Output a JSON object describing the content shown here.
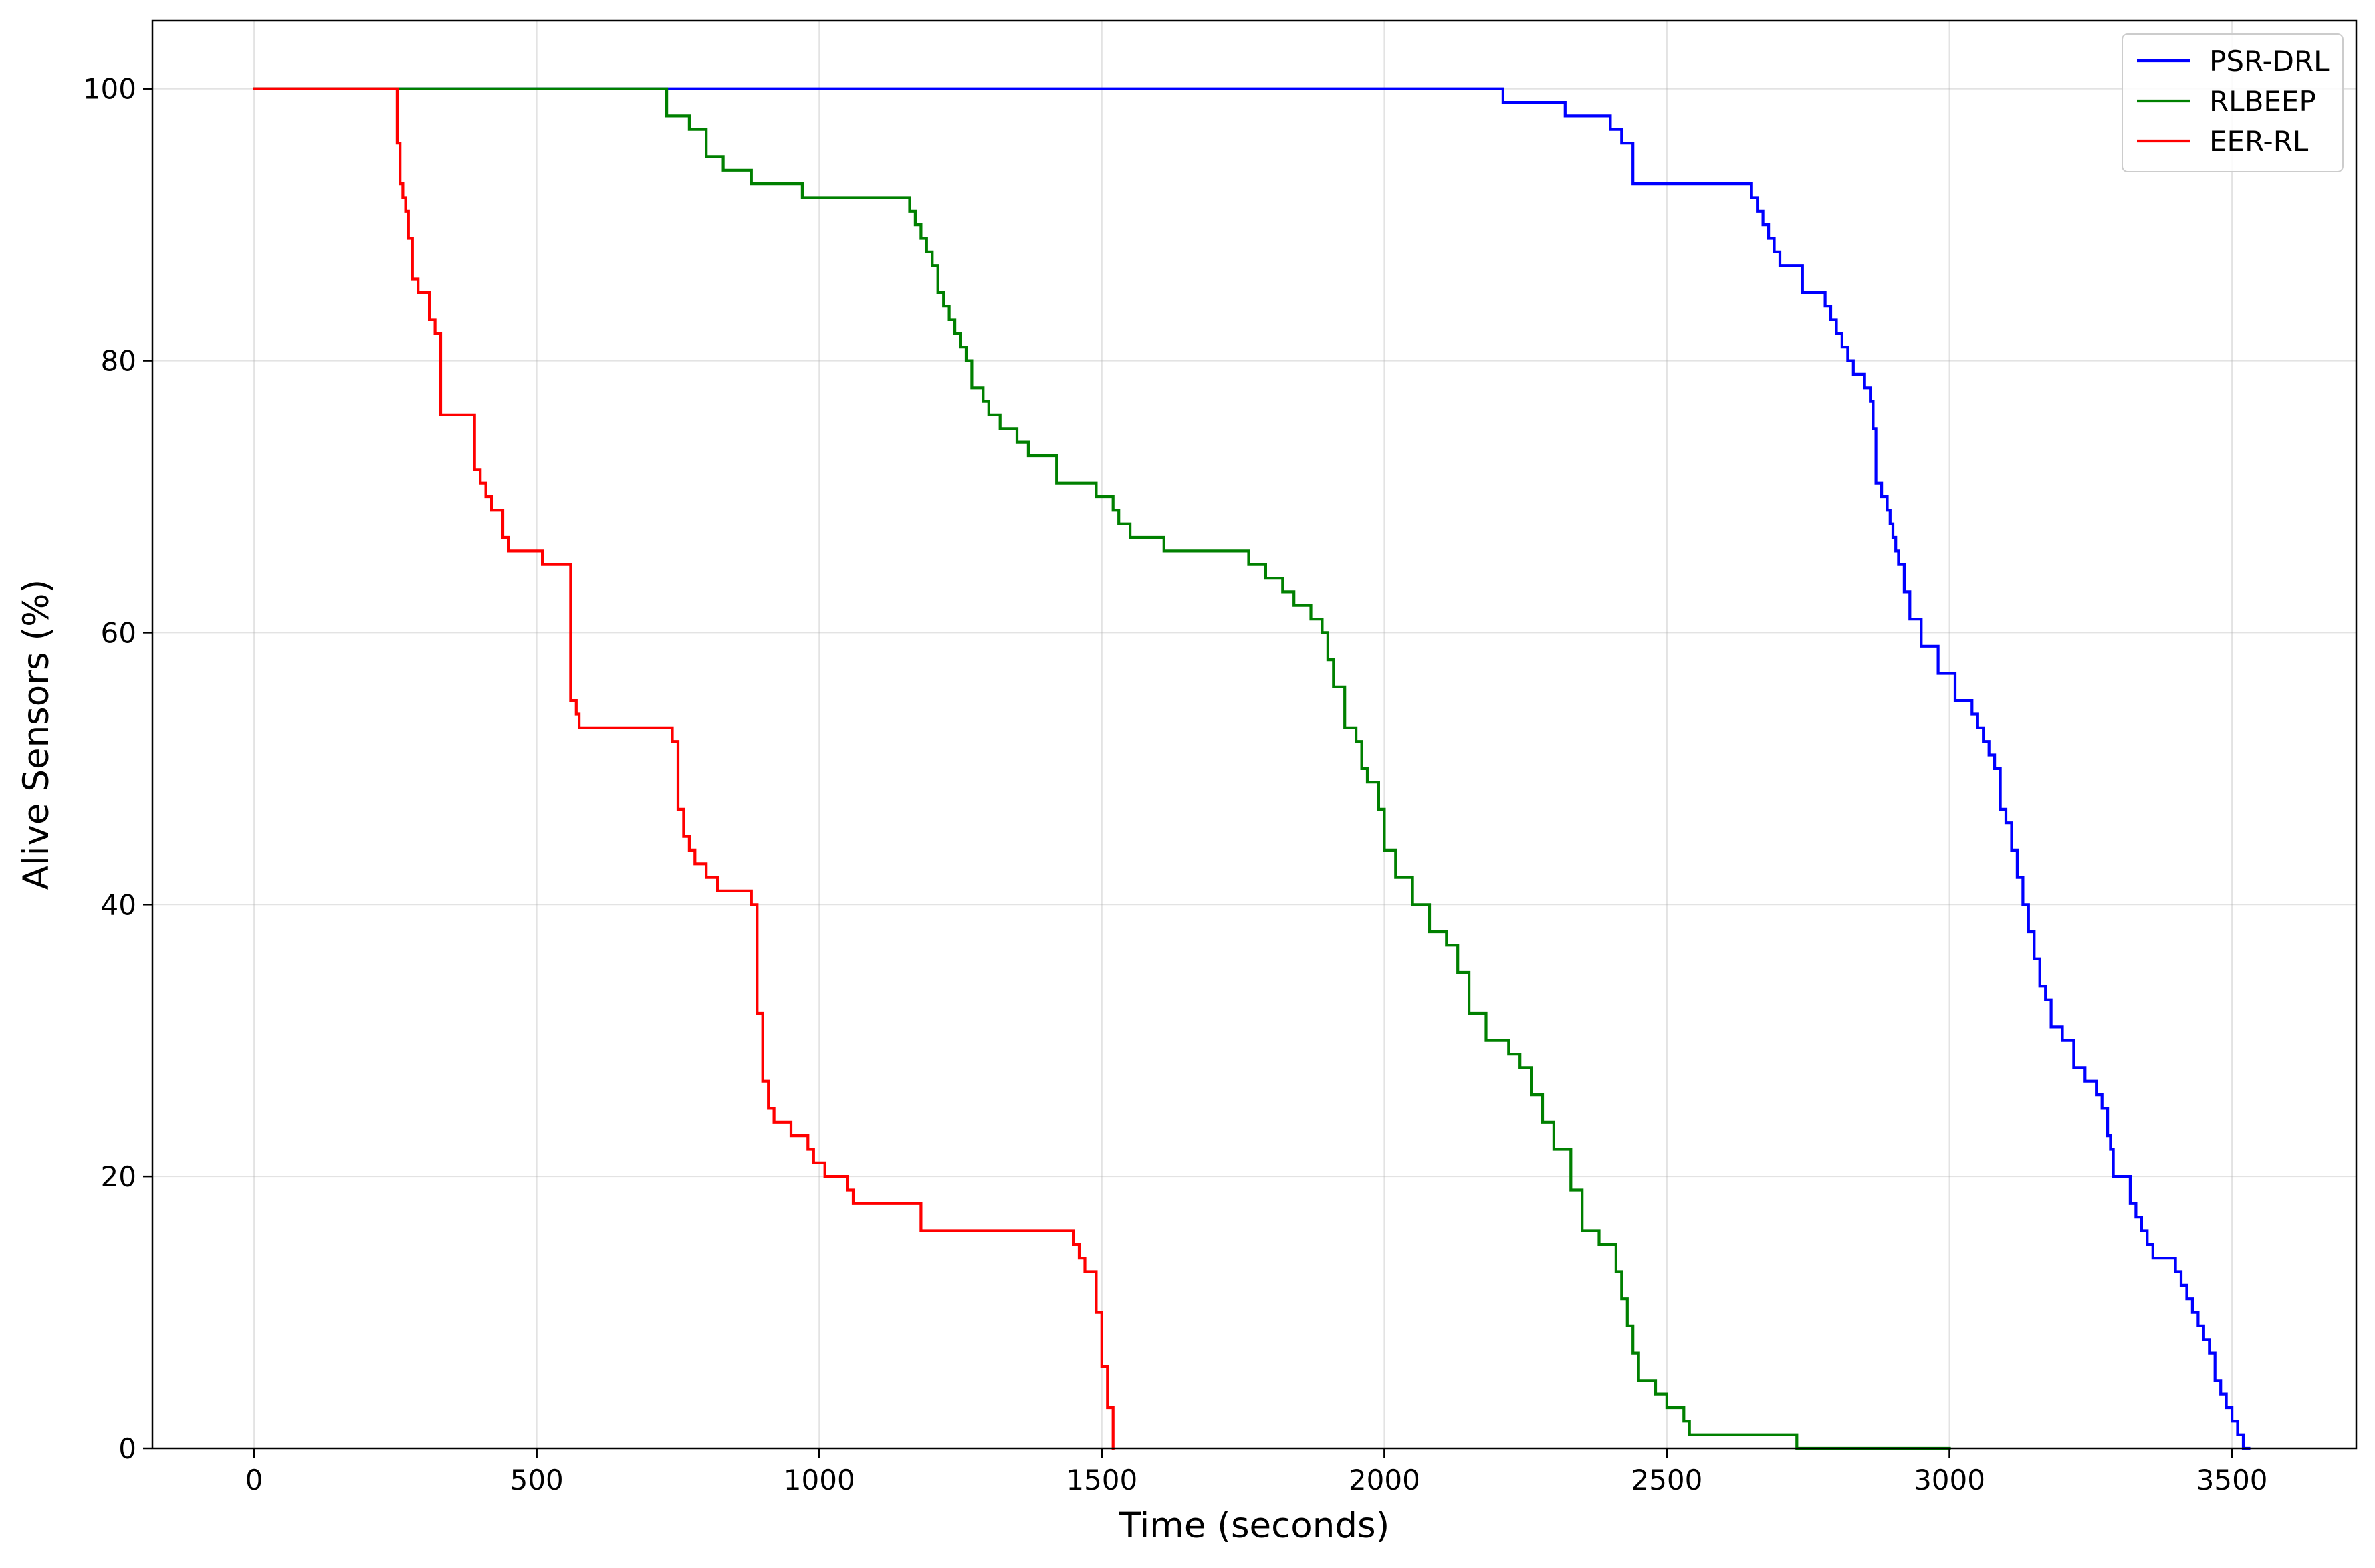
{
  "chart_data": {
    "type": "line",
    "step": "post",
    "title": "",
    "xlabel": "Time (seconds)",
    "ylabel": "Alive Sensors (%)",
    "xlim": [
      -180,
      3720
    ],
    "ylim": [
      0,
      105
    ],
    "xticks": [
      0,
      500,
      1000,
      1500,
      2000,
      2500,
      3000,
      3500
    ],
    "yticks": [
      0,
      20,
      40,
      60,
      80,
      100
    ],
    "grid": true,
    "legend": {
      "position": "top-right",
      "entries": [
        "PSR-DRL",
        "RLBEEP",
        "EER-RL"
      ]
    },
    "series": [
      {
        "name": "PSR-DRL",
        "color": "#0000ff",
        "x": [
          0,
          2210,
          2320,
          2400,
          2420,
          2440,
          2650,
          2660,
          2670,
          2680,
          2690,
          2700,
          2740,
          2780,
          2790,
          2800,
          2810,
          2820,
          2830,
          2850,
          2860,
          2865,
          2870,
          2880,
          2890,
          2895,
          2900,
          2905,
          2910,
          2920,
          2930,
          2950,
          2980,
          3010,
          3040,
          3050,
          3060,
          3070,
          3080,
          3090,
          3100,
          3110,
          3120,
          3130,
          3140,
          3150,
          3160,
          3170,
          3180,
          3200,
          3220,
          3240,
          3260,
          3270,
          3280,
          3285,
          3290,
          3320,
          3330,
          3340,
          3350,
          3360,
          3400,
          3410,
          3420,
          3430,
          3440,
          3450,
          3460,
          3470,
          3480,
          3490,
          3500,
          3510,
          3520,
          3530
        ],
        "y": [
          100,
          99,
          98,
          97,
          96,
          93,
          92,
          91,
          90,
          89,
          88,
          87,
          85,
          84,
          83,
          82,
          81,
          80,
          79,
          78,
          77,
          75,
          71,
          70,
          69,
          68,
          67,
          66,
          65,
          63,
          61,
          59,
          57,
          55,
          54,
          53,
          52,
          51,
          50,
          47,
          46,
          44,
          42,
          40,
          38,
          36,
          34,
          33,
          31,
          30,
          28,
          27,
          26,
          25,
          23,
          22,
          20,
          18,
          17,
          16,
          15,
          14,
          13,
          12,
          11,
          10,
          9,
          8,
          7,
          5,
          4,
          3,
          2,
          1,
          0,
          0
        ]
      },
      {
        "name": "RLBEEP",
        "color": "#008000",
        "x": [
          0,
          730,
          770,
          800,
          830,
          880,
          970,
          1160,
          1170,
          1180,
          1190,
          1200,
          1210,
          1220,
          1230,
          1240,
          1250,
          1260,
          1270,
          1290,
          1300,
          1320,
          1350,
          1370,
          1380,
          1420,
          1430,
          1490,
          1520,
          1530,
          1540,
          1550,
          1560,
          1580,
          1610,
          1620,
          1630,
          1670,
          1760,
          1790,
          1800,
          1820,
          1840,
          1870,
          1890,
          1900,
          1910,
          1930,
          1950,
          1960,
          1970,
          1990,
          2000,
          2020,
          2050,
          2080,
          2110,
          2130,
          2150,
          2160,
          2180,
          2190,
          2220,
          2240,
          2260,
          2280,
          2300,
          2330,
          2350,
          2380,
          2400,
          2410,
          2420,
          2430,
          2440,
          2450,
          2480,
          2500,
          2530,
          2540,
          2560,
          2600,
          2730,
          3000
        ],
        "y": [
          100,
          98,
          97,
          95,
          94,
          93,
          92,
          91,
          90,
          89,
          88,
          87,
          85,
          84,
          83,
          82,
          81,
          80,
          78,
          77,
          76,
          75,
          74,
          73,
          73,
          71,
          71,
          70,
          69,
          68,
          68,
          67,
          67,
          67,
          66,
          66,
          66,
          66,
          65,
          64,
          64,
          63,
          62,
          61,
          60,
          58,
          56,
          53,
          52,
          50,
          49,
          47,
          44,
          42,
          40,
          38,
          37,
          35,
          32,
          32,
          30,
          30,
          29,
          28,
          26,
          24,
          22,
          19,
          16,
          15,
          15,
          13,
          11,
          9,
          7,
          5,
          4,
          3,
          2,
          1,
          1,
          1,
          0,
          0
        ]
      },
      {
        "name": "EER-RL",
        "color": "#ff0000",
        "x": [
          0,
          253,
          258,
          263,
          268,
          273,
          280,
          290,
          310,
          320,
          330,
          380,
          390,
          400,
          410,
          420,
          440,
          450,
          470,
          510,
          560,
          570,
          575,
          580,
          740,
          750,
          760,
          770,
          780,
          800,
          820,
          880,
          890,
          900,
          910,
          920,
          950,
          970,
          980,
          990,
          1010,
          1050,
          1060,
          1170,
          1180,
          1440,
          1450,
          1460,
          1470,
          1480,
          1490,
          1500,
          1510,
          1520
        ],
        "y": [
          100,
          96,
          93,
          92,
          91,
          89,
          86,
          85,
          83,
          82,
          76,
          76,
          72,
          71,
          70,
          69,
          67,
          66,
          66,
          65,
          55,
          54,
          53,
          53,
          52,
          47,
          45,
          44,
          43,
          42,
          41,
          40,
          32,
          27,
          25,
          24,
          23,
          23,
          22,
          21,
          20,
          19,
          18,
          18,
          16,
          16,
          15,
          14,
          13,
          13,
          10,
          6,
          3,
          0
        ]
      }
    ]
  }
}
